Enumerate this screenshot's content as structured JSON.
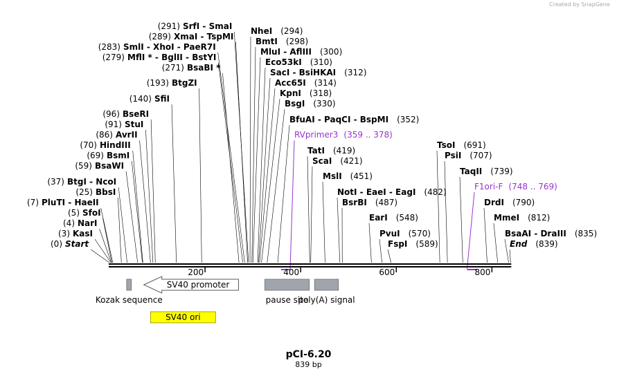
{
  "header": {
    "credit": "Created by SnapGene"
  },
  "plasmid": {
    "name": "pCI-6.20",
    "length_label": "839 bp",
    "length_bp": 839
  },
  "ruler": {
    "ticks": [
      {
        "pos": 200,
        "label": "200"
      },
      {
        "pos": 400,
        "label": "400"
      },
      {
        "pos": 600,
        "label": "600"
      },
      {
        "pos": 800,
        "label": "800"
      }
    ]
  },
  "sites": [
    {
      "pos": 0,
      "pos_label": "(0)",
      "name": "Start",
      "italic": true
    },
    {
      "pos": 3,
      "pos_label": "(3)",
      "name": "KasI"
    },
    {
      "pos": 4,
      "pos_label": "(4)",
      "name": "NarI"
    },
    {
      "pos": 5,
      "pos_label": "(5)",
      "name": "SfoI"
    },
    {
      "pos": 7,
      "pos_label": "(7)",
      "name": "PluTI  - HaeII"
    },
    {
      "pos": 25,
      "pos_label": "(25)",
      "name": "BbsI"
    },
    {
      "pos": 37,
      "pos_label": "(37)",
      "name": "BtgI  - NcoI"
    },
    {
      "pos": 59,
      "pos_label": "(59)",
      "name": "BsaWI"
    },
    {
      "pos": 69,
      "pos_label": "(69)",
      "name": "BsmI"
    },
    {
      "pos": 70,
      "pos_label": "(70)",
      "name": "HindIII"
    },
    {
      "pos": 86,
      "pos_label": "(86)",
      "name": "AvrII"
    },
    {
      "pos": 91,
      "pos_label": "(91)",
      "name": "StuI"
    },
    {
      "pos": 96,
      "pos_label": "(96)",
      "name": "BseRI"
    },
    {
      "pos": 140,
      "pos_label": "(140)",
      "name": "SfiI"
    },
    {
      "pos": 193,
      "pos_label": "(193)",
      "name": "BtgZI"
    },
    {
      "pos": 271,
      "pos_label": "(271)",
      "name": "BsaBI *"
    },
    {
      "pos": 279,
      "pos_label": "(279)",
      "name": "MflI * - BglII  - BstYI"
    },
    {
      "pos": 283,
      "pos_label": "(283)",
      "name": "SmlI  - XhoI  - PaeR7I"
    },
    {
      "pos": 289,
      "pos_label": "(289)",
      "name": "XmaI  - TspMI"
    },
    {
      "pos": 291,
      "pos_label": "(291)",
      "name": "SrfI  - SmaI"
    },
    {
      "pos": 294,
      "pos_label": "(294)",
      "name": "NheI"
    },
    {
      "pos": 298,
      "pos_label": "(298)",
      "name": "BmtI"
    },
    {
      "pos": 300,
      "pos_label": "(300)",
      "name": "MluI  - AflIII"
    },
    {
      "pos": 310,
      "pos_label": "(310)",
      "name": "Eco53kI"
    },
    {
      "pos": 312,
      "pos_label": "(312)",
      "name": "SacI  - BsiHKAI"
    },
    {
      "pos": 314,
      "pos_label": "(314)",
      "name": "Acc65I"
    },
    {
      "pos": 318,
      "pos_label": "(318)",
      "name": "KpnI"
    },
    {
      "pos": 330,
      "pos_label": "(330)",
      "name": "BsgI"
    },
    {
      "pos": 352,
      "pos_label": "(352)",
      "name": "BfuAI  - PaqCI  - BspMI"
    },
    {
      "pos": 419,
      "pos_label": "(419)",
      "name": "TatI"
    },
    {
      "pos": 421,
      "pos_label": "(421)",
      "name": "ScaI"
    },
    {
      "pos": 451,
      "pos_label": "(451)",
      "name": "MslI"
    },
    {
      "pos": 482,
      "pos_label": "(482)",
      "name": "NotI  - EaeI  - EagI"
    },
    {
      "pos": 487,
      "pos_label": "(487)",
      "name": "BsrBI"
    },
    {
      "pos": 548,
      "pos_label": "(548)",
      "name": "EarI"
    },
    {
      "pos": 570,
      "pos_label": "(570)",
      "name": "PvuI"
    },
    {
      "pos": 589,
      "pos_label": "(589)",
      "name": "FspI"
    },
    {
      "pos": 691,
      "pos_label": "(691)",
      "name": "TsoI"
    },
    {
      "pos": 707,
      "pos_label": "(707)",
      "name": "PsiI"
    },
    {
      "pos": 739,
      "pos_label": "(739)",
      "name": "TaqII"
    },
    {
      "pos": 790,
      "pos_label": "(790)",
      "name": "DrdI"
    },
    {
      "pos": 812,
      "pos_label": "(812)",
      "name": "MmeI"
    },
    {
      "pos": 835,
      "pos_label": "(835)",
      "name": "BsaAI  - DraIII"
    },
    {
      "pos": 839,
      "pos_label": "(839)",
      "name": "End",
      "italic": true
    }
  ],
  "primers": [
    {
      "name": "RVprimer3",
      "range": "(359 .. 378)",
      "start": 359,
      "end": 378
    },
    {
      "name": "F1ori-F",
      "range": "(748 .. 769)",
      "start": 748,
      "end": 769
    }
  ],
  "features": [
    {
      "name": "Kozak sequence",
      "type": "misc",
      "start": 36,
      "end": 46
    },
    {
      "name": "SV40 promoter",
      "type": "promoter_reverse",
      "start": 72,
      "end": 270
    },
    {
      "name": "SV40 ori",
      "type": "rep_origin",
      "start": 86,
      "end": 222
    },
    {
      "name": "pause site",
      "type": "misc",
      "start": 325,
      "end": 418
    },
    {
      "name": "poly(A) signal",
      "type": "misc",
      "start": 429,
      "end": 479
    }
  ],
  "colors": {
    "backbone": "#000000",
    "primer": "#9933cc",
    "feature_gray": "#a0a4ab",
    "sv40_ori": "#ffff00",
    "credit_gray": "#a9a9a9"
  }
}
